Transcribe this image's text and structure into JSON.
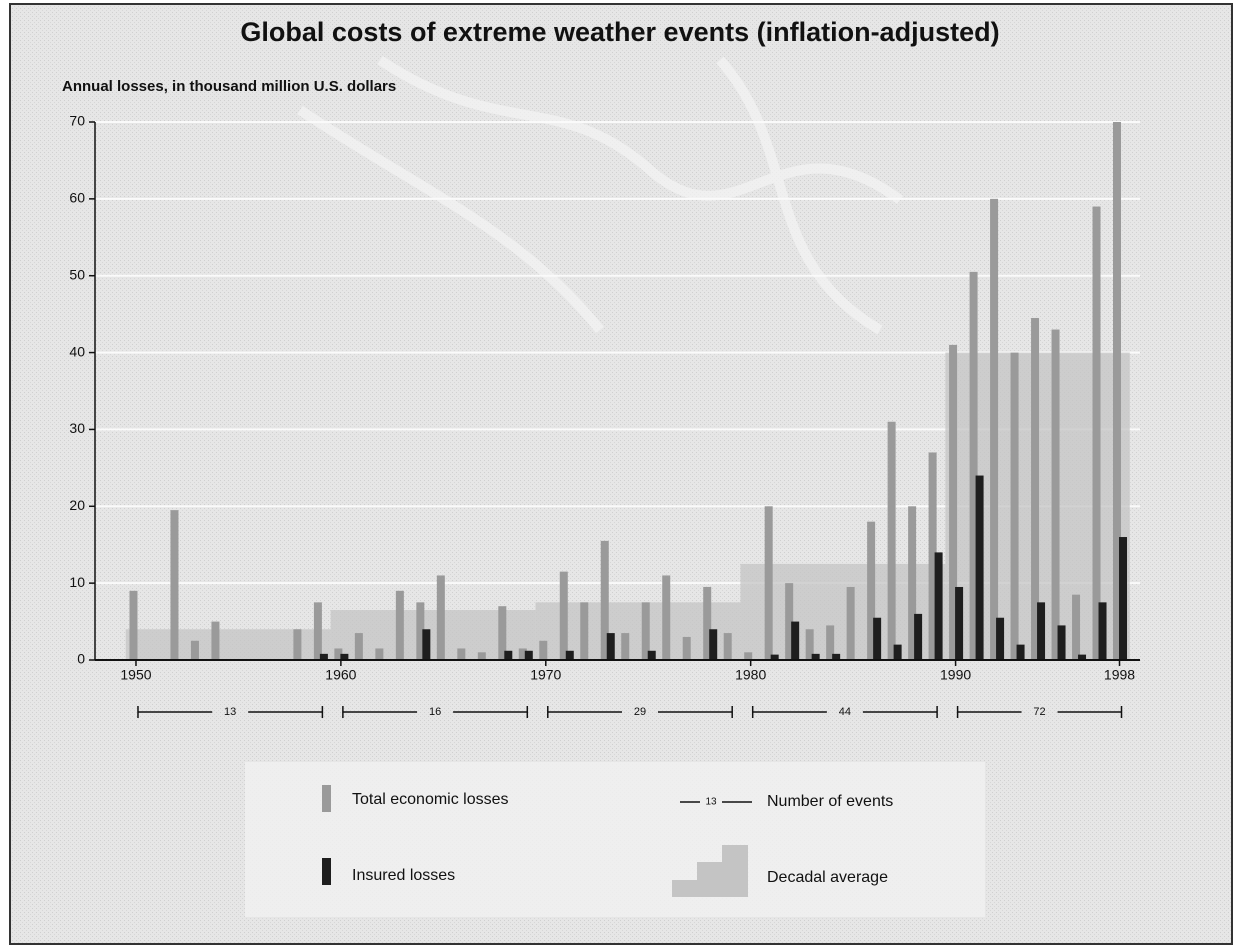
{
  "chart_data": {
    "type": "bar",
    "title": "Global costs of extreme weather events (inflation-adjusted)",
    "y_label": "Annual losses, in thousand million U.S. dollars",
    "x": [
      1950,
      1951,
      1952,
      1953,
      1954,
      1955,
      1956,
      1957,
      1958,
      1959,
      1960,
      1961,
      1962,
      1963,
      1964,
      1965,
      1966,
      1967,
      1968,
      1969,
      1970,
      1971,
      1972,
      1973,
      1974,
      1975,
      1976,
      1977,
      1978,
      1979,
      1980,
      1981,
      1982,
      1983,
      1984,
      1985,
      1986,
      1987,
      1988,
      1989,
      1990,
      1991,
      1992,
      1993,
      1994,
      1995,
      1996,
      1997,
      1998
    ],
    "series": [
      {
        "name": "Total economic losses",
        "color": "#9a9a9a",
        "values": [
          9,
          null,
          19.5,
          2.5,
          5,
          null,
          null,
          null,
          4,
          7.5,
          1.5,
          3.5,
          1.5,
          9,
          7.5,
          11,
          1.5,
          1,
          7,
          1.5,
          2.5,
          11.5,
          7.5,
          15.5,
          3.5,
          7.5,
          11,
          3,
          9.5,
          3.5,
          1,
          20,
          10,
          4,
          4.5,
          9.5,
          18,
          31,
          20,
          27,
          41,
          50.5,
          60,
          40,
          44.5,
          43,
          8.5,
          59,
          70
        ]
      },
      {
        "name": "Insured losses",
        "color": "#1e1e1e",
        "values": [
          null,
          null,
          null,
          null,
          null,
          null,
          null,
          null,
          null,
          0.8,
          0.8,
          null,
          null,
          null,
          4,
          null,
          null,
          null,
          1.2,
          1.2,
          null,
          1.2,
          null,
          3.5,
          null,
          1.2,
          null,
          null,
          4,
          null,
          null,
          0.7,
          5,
          0.8,
          0.8,
          null,
          5.5,
          2,
          6,
          14,
          9.5,
          24,
          5.5,
          2,
          7.5,
          4.5,
          0.7,
          7.5,
          16
        ]
      }
    ],
    "decadal_average": {
      "name": "Decadal average",
      "color": "#c4c4c4",
      "x_start": [
        1950,
        1960,
        1970,
        1980,
        1990
      ],
      "x_end": [
        1959,
        1969,
        1979,
        1989,
        1998
      ],
      "values": [
        4,
        6.5,
        7.5,
        12.5,
        40
      ]
    },
    "events": {
      "name": "Number of events",
      "x_start": [
        1950,
        1960,
        1970,
        1980,
        1990
      ],
      "x_end": [
        1959,
        1969,
        1979,
        1989,
        1998
      ],
      "values": [
        13,
        16,
        29,
        44,
        72
      ]
    },
    "xlim": [
      1948,
      1999
    ],
    "xticks": [
      1950,
      1960,
      1970,
      1980,
      1990,
      1998
    ],
    "ylim": [
      0,
      70
    ],
    "yticks": [
      0,
      10,
      20,
      30,
      40,
      50,
      60,
      70
    ],
    "grid": true
  }
}
